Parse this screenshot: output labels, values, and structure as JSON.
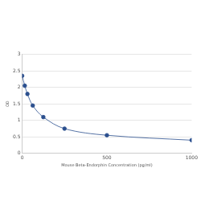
{
  "chart_data": {
    "type": "line",
    "x_label": "Mouse Beta-Endorphin Concentration (pg/ml)",
    "y_label": "OD",
    "x": [
      0,
      15.6,
      31.25,
      62.5,
      125,
      250,
      500,
      1000
    ],
    "values": [
      2.35,
      2.05,
      1.8,
      1.45,
      1.1,
      0.75,
      0.55,
      0.4
    ],
    "color": "#2b4f8e",
    "marker": "circle",
    "xlim": [
      0,
      1000
    ],
    "xticks": [
      0,
      500,
      1000
    ],
    "ylim": [
      0,
      3
    ],
    "yticks": [
      0,
      0.5,
      1,
      1.5,
      2,
      2.5,
      3
    ],
    "grid": true
  }
}
